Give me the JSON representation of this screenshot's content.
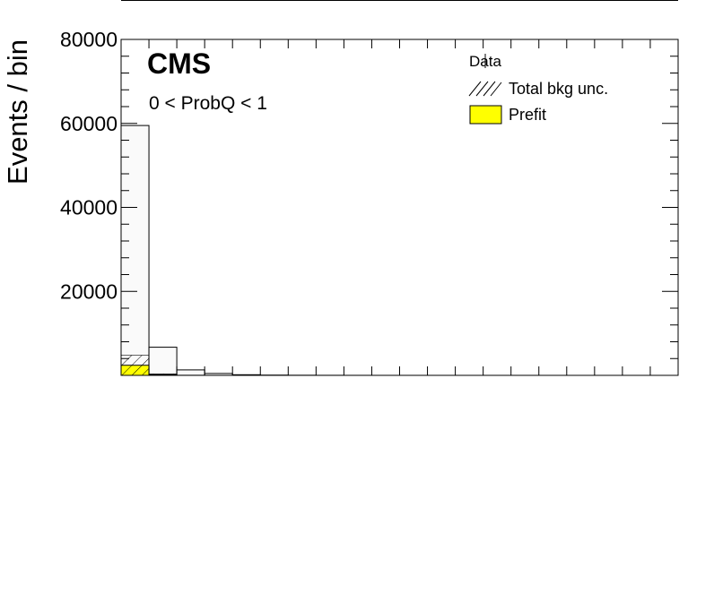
{
  "chart_data": {
    "type": "bar",
    "experiment_label": "CMS",
    "region_label": "0 < ProbQ < 1",
    "ylabel": "Events / bin",
    "xlabel": "",
    "ylim": [
      0,
      80000
    ],
    "yticks": [
      20000,
      40000,
      60000,
      80000
    ],
    "ytick_labels": [
      "20000",
      "40000",
      "60000",
      "80000"
    ],
    "grid": false,
    "legend_position": "top-right",
    "legend": {
      "data": "Data",
      "unc": "Total bkg unc.",
      "prefit": "Prefit"
    },
    "bins": 20,
    "series": [
      {
        "name": "Data",
        "values": [
          59500,
          6700,
          1300,
          450,
          150,
          60,
          30,
          15,
          8,
          5,
          3,
          2,
          1,
          1,
          1,
          0,
          0,
          0,
          0,
          0
        ]
      },
      {
        "name": "Prefit",
        "values": [
          2400,
          180,
          20,
          5,
          2,
          1,
          0,
          0,
          0,
          0,
          0,
          0,
          0,
          0,
          0,
          0,
          0,
          0,
          0,
          0
        ]
      },
      {
        "name": "Total bkg unc.",
        "values": [
          4800,
          350,
          40,
          10,
          4,
          2,
          0,
          0,
          0,
          0,
          0,
          0,
          0,
          0,
          0,
          0,
          0,
          0,
          0,
          0
        ]
      }
    ],
    "colors": {
      "prefit": "#ffff00",
      "data_fill": "#fafafa",
      "line": "#000000"
    }
  }
}
